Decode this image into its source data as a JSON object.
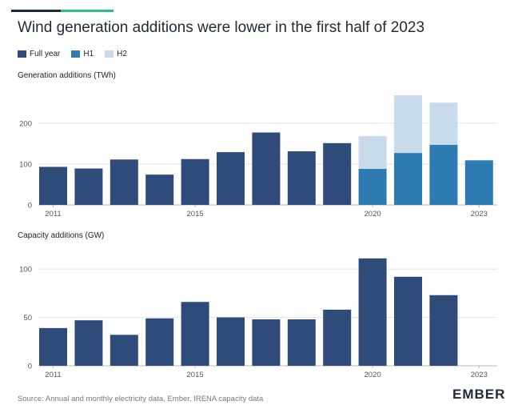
{
  "title": "Wind generation additions were lower in the first half of 2023",
  "colors": {
    "full_year": "#2e4b7a",
    "h1": "#2e7bb4",
    "h2": "#c7dbea",
    "grid": "#e2e2e2",
    "top_accent_dark": "#1f2b38",
    "top_accent_green": "#2ebd88"
  },
  "legend": [
    {
      "label": "Full year",
      "color": "#2e4b7a"
    },
    {
      "label": "H1",
      "color": "#2e7bb4"
    },
    {
      "label": "H2",
      "color": "#c7dbea"
    }
  ],
  "source": "Source: Annual and monthly electricity data, Ember, IRENA capacity data",
  "logo_text": "EMBER",
  "chart_data": [
    {
      "type": "bar",
      "title": "Generation additions (TWh)",
      "categories": [
        "2011",
        "2012",
        "2013",
        "2014",
        "2015",
        "2016",
        "2017",
        "2018",
        "2019",
        "2020",
        "2021",
        "2022",
        "2023"
      ],
      "x_tick_labels": [
        "2011",
        "2015",
        "2020",
        "2023"
      ],
      "ylim": [
        0,
        270
      ],
      "yticks": [
        0,
        100,
        200
      ],
      "series": [
        {
          "name": "Full year",
          "values": [
            93,
            89,
            111,
            74,
            112,
            129,
            177,
            131,
            151,
            null,
            null,
            null,
            null
          ]
        },
        {
          "name": "H1",
          "values": [
            null,
            null,
            null,
            null,
            null,
            null,
            null,
            null,
            null,
            88,
            127,
            147,
            109
          ]
        },
        {
          "name": "H2",
          "values": [
            null,
            null,
            null,
            null,
            null,
            null,
            null,
            null,
            null,
            80,
            141,
            103,
            null
          ]
        }
      ],
      "stacked": true,
      "grid": true
    },
    {
      "type": "bar",
      "title": "Capacity additions (GW)",
      "categories": [
        "2011",
        "2012",
        "2013",
        "2014",
        "2015",
        "2016",
        "2017",
        "2018",
        "2019",
        "2020",
        "2021",
        "2022",
        "2023"
      ],
      "x_tick_labels": [
        "2011",
        "2015",
        "2020",
        "2023"
      ],
      "ylim": [
        0,
        115
      ],
      "yticks": [
        0,
        50,
        100
      ],
      "series": [
        {
          "name": "Full year",
          "values": [
            39,
            47,
            32,
            49,
            66,
            50,
            48,
            48,
            58,
            111,
            92,
            73,
            null
          ]
        }
      ],
      "grid": true
    }
  ]
}
